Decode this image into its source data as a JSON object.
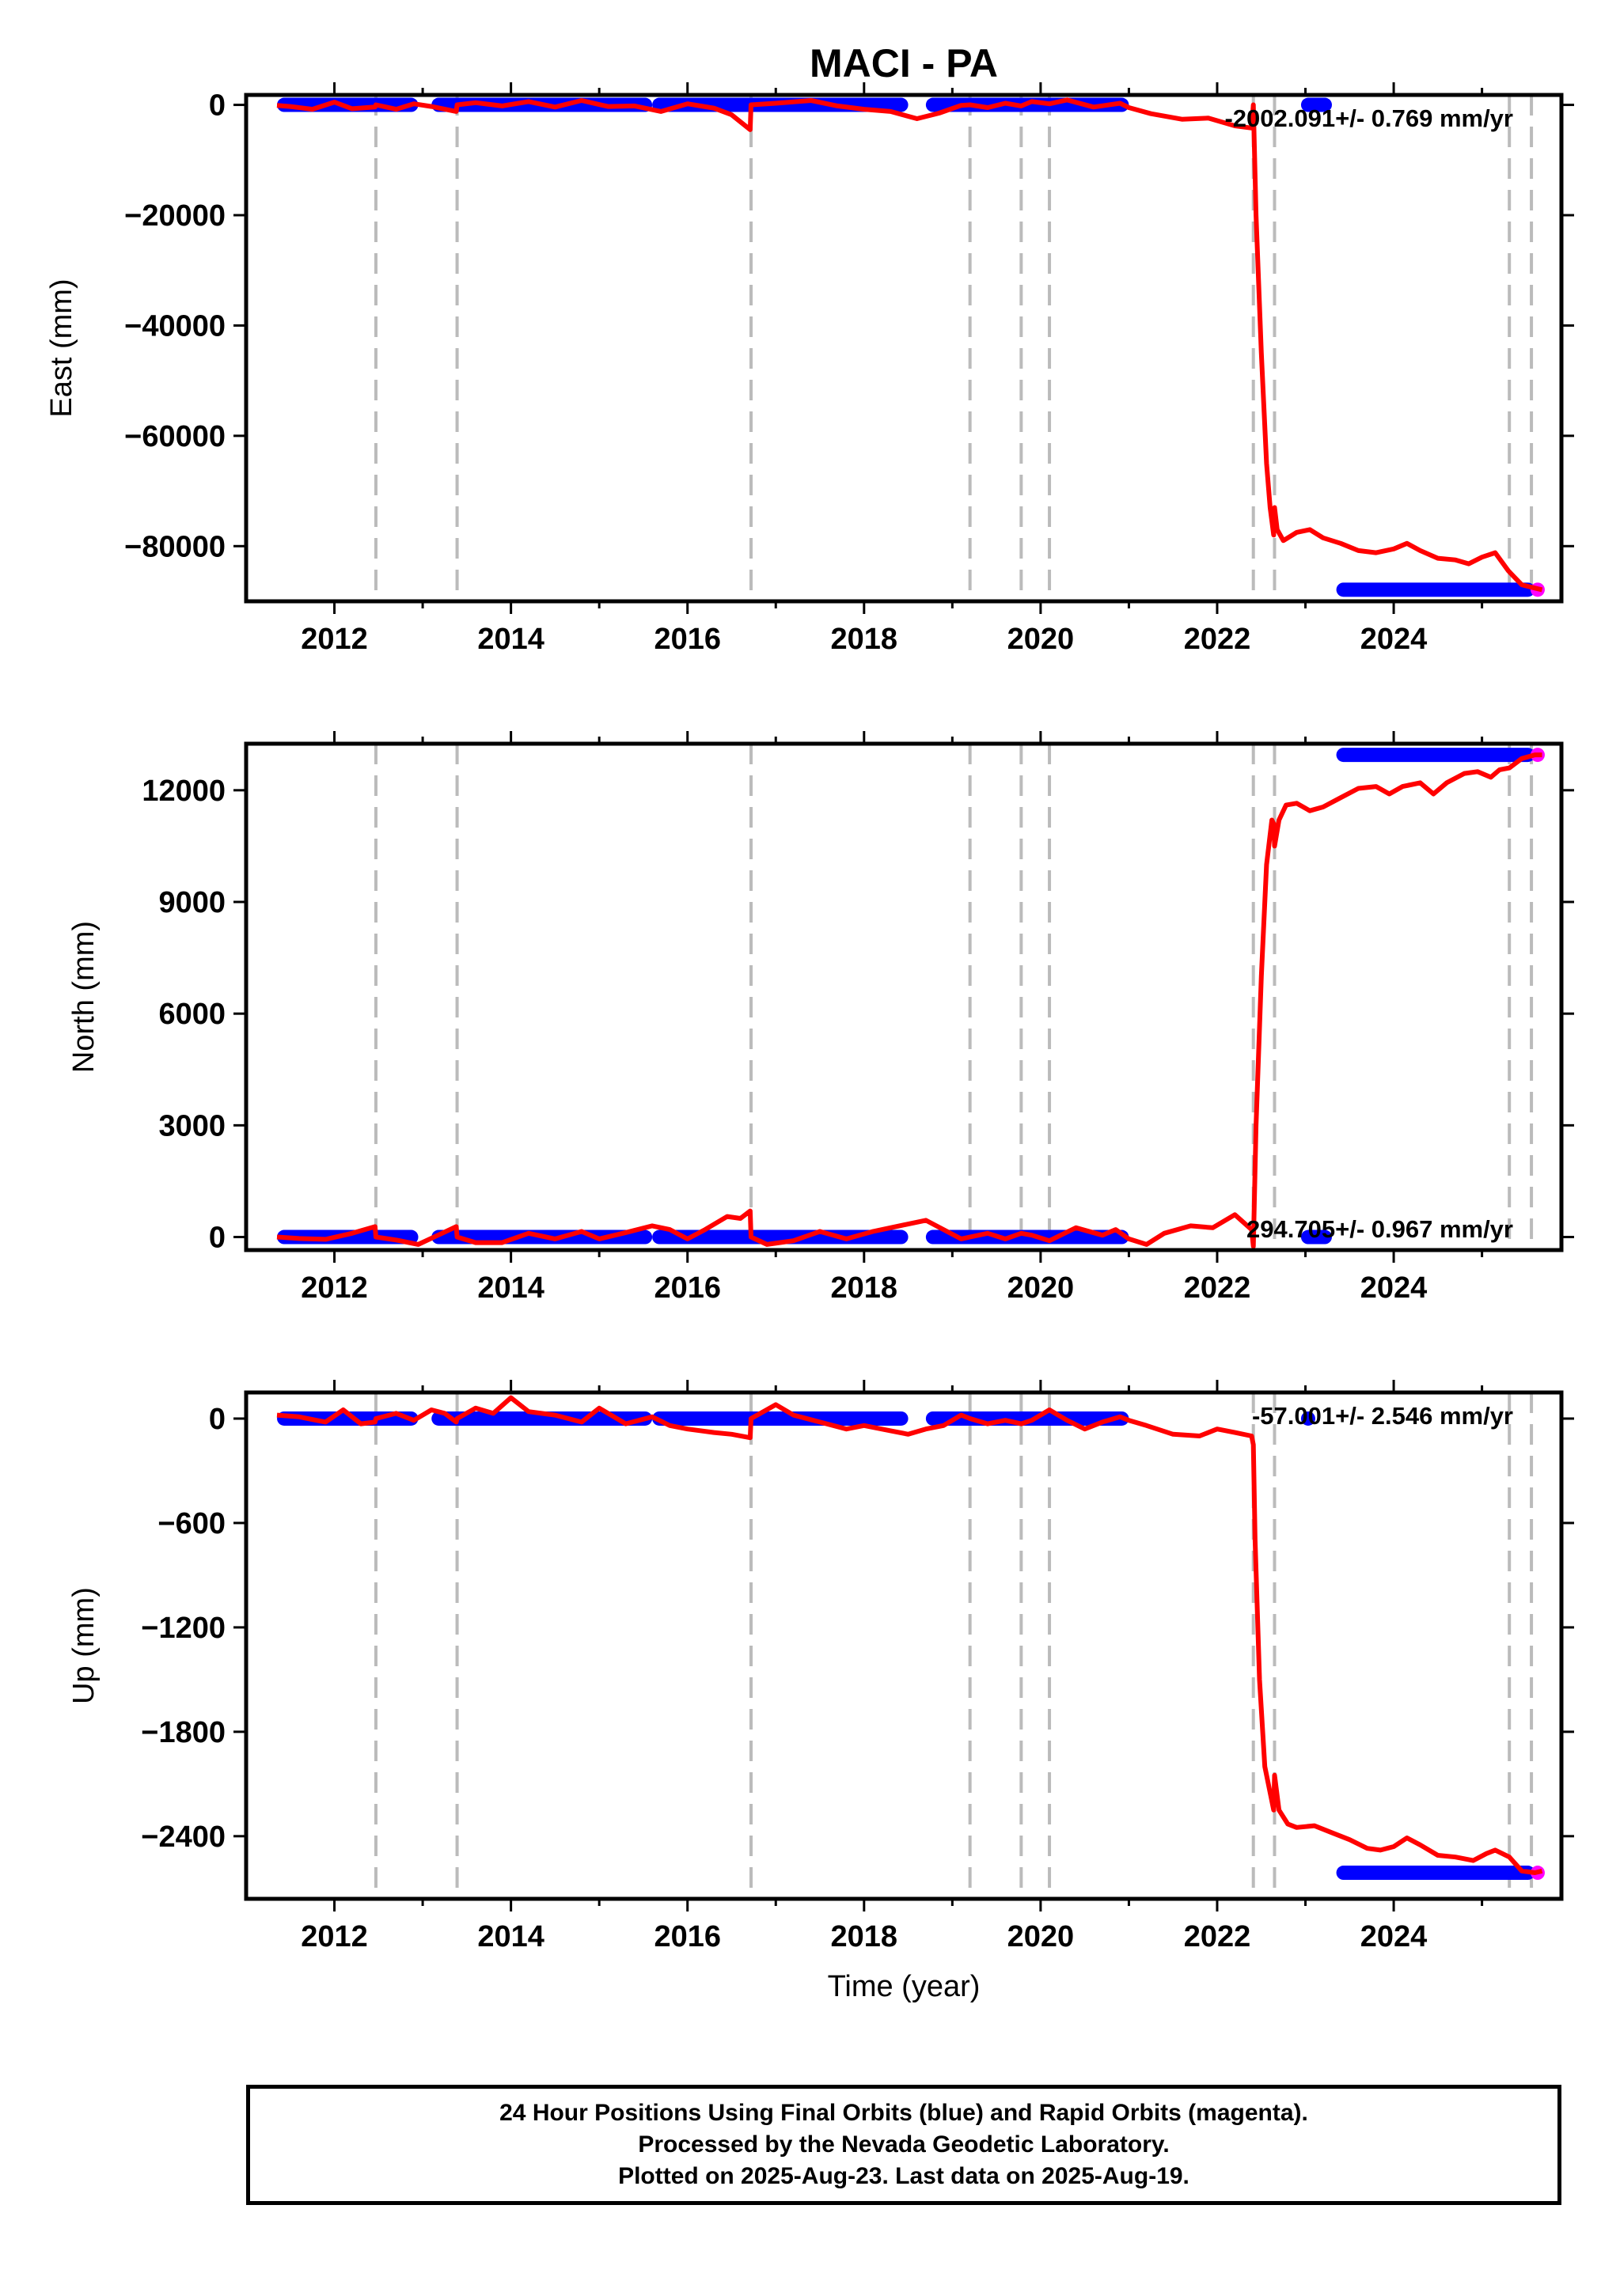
{
  "chart_data": {
    "title": "MACI - PA",
    "xlabel": "Time (year)",
    "x_ticks": [
      "2012",
      "2014",
      "2016",
      "2018",
      "2020",
      "2022",
      "2024"
    ],
    "xlim": [
      2011.0,
      2025.9
    ],
    "offset_years": [
      2012.47,
      2013.39,
      2016.72,
      2019.2,
      2019.78,
      2020.1,
      2022.41,
      2022.65,
      2025.31,
      2025.56
    ],
    "colors": {
      "final": "#0000ff",
      "rapid": "#ff00ff",
      "model": "#ff0000",
      "offset": "#bbbbbb"
    },
    "panels": [
      {
        "type": "scatter",
        "ylabel": "East (mm)",
        "ylim": [
          -90000,
          1800
        ],
        "y_ticks": [
          0,
          -20000,
          -40000,
          -60000,
          -80000
        ],
        "y_tick_labels": [
          "0",
          "−20000",
          "−40000",
          "−60000",
          "−80000"
        ],
        "rate_text": "-2002.091+/- 0.769 mm/yr",
        "final_segments": [
          {
            "x": [
              2011.35,
              2012.95
            ],
            "y": 0
          },
          {
            "x": [
              2013.1,
              2015.6
            ],
            "y": 0
          },
          {
            "x": [
              2015.6,
              2018.5
            ],
            "y": 0
          },
          {
            "x": [
              2018.7,
              2021.0
            ],
            "y": 0
          },
          {
            "x": [
              2022.95,
              2023.3
            ],
            "y": 0
          },
          {
            "x": [
              2023.35,
              2025.6
            ],
            "y": -87900
          }
        ],
        "rapid_segments": [
          {
            "x": [
              2025.55,
              2025.68
            ],
            "y": -87900
          }
        ],
        "model": [
          [
            2011.35,
            -100
          ],
          [
            2011.5,
            -300
          ],
          [
            2011.75,
            -800
          ],
          [
            2012.0,
            500
          ],
          [
            2012.2,
            -700
          ],
          [
            2012.46,
            -400
          ],
          [
            2012.47,
            0
          ],
          [
            2012.7,
            -800
          ],
          [
            2012.9,
            200
          ],
          [
            2013.1,
            -300
          ],
          [
            2013.38,
            -1200
          ],
          [
            2013.39,
            0
          ],
          [
            2013.6,
            400
          ],
          [
            2013.9,
            -200
          ],
          [
            2014.2,
            600
          ],
          [
            2014.5,
            -400
          ],
          [
            2014.8,
            800
          ],
          [
            2015.1,
            -300
          ],
          [
            2015.4,
            -200
          ],
          [
            2015.7,
            -1200
          ],
          [
            2016.0,
            200
          ],
          [
            2016.3,
            -600
          ],
          [
            2016.5,
            -1800
          ],
          [
            2016.71,
            -4500
          ],
          [
            2016.72,
            0
          ],
          [
            2017.0,
            300
          ],
          [
            2017.4,
            800
          ],
          [
            2017.7,
            -200
          ],
          [
            2018.0,
            -800
          ],
          [
            2018.3,
            -1200
          ],
          [
            2018.6,
            -2500
          ],
          [
            2018.85,
            -1500
          ],
          [
            2019.1,
            -100
          ],
          [
            2019.2,
            0
          ],
          [
            2019.4,
            -500
          ],
          [
            2019.6,
            300
          ],
          [
            2019.78,
            -200
          ],
          [
            2019.9,
            600
          ],
          [
            2020.1,
            200
          ],
          [
            2020.3,
            900
          ],
          [
            2020.6,
            -400
          ],
          [
            2020.9,
            300
          ],
          [
            2021.0,
            -500
          ],
          [
            2021.25,
            -1600
          ],
          [
            2021.6,
            -2600
          ],
          [
            2021.9,
            -2400
          ],
          [
            2022.2,
            -3800
          ],
          [
            2022.39,
            -4200
          ],
          [
            2022.41,
            0
          ],
          [
            2022.44,
            -20000
          ],
          [
            2022.5,
            -45000
          ],
          [
            2022.56,
            -65000
          ],
          [
            2022.6,
            -73000
          ],
          [
            2022.64,
            -78000
          ],
          [
            2022.65,
            -73000
          ],
          [
            2022.68,
            -77000
          ],
          [
            2022.75,
            -79000
          ],
          [
            2022.9,
            -77500
          ],
          [
            2023.05,
            -77000
          ],
          [
            2023.2,
            -78500
          ],
          [
            2023.4,
            -79500
          ],
          [
            2023.6,
            -80800
          ],
          [
            2023.8,
            -81200
          ],
          [
            2024.0,
            -80500
          ],
          [
            2024.15,
            -79500
          ],
          [
            2024.3,
            -80800
          ],
          [
            2024.5,
            -82200
          ],
          [
            2024.7,
            -82500
          ],
          [
            2024.85,
            -83200
          ],
          [
            2025.0,
            -82000
          ],
          [
            2025.15,
            -81200
          ],
          [
            2025.3,
            -84500
          ],
          [
            2025.45,
            -87000
          ],
          [
            2025.6,
            -87600
          ],
          [
            2025.68,
            -87900
          ]
        ]
      },
      {
        "type": "scatter",
        "ylabel": "North (mm)",
        "ylim": [
          -350,
          13250
        ],
        "y_ticks": [
          0,
          3000,
          6000,
          9000,
          12000
        ],
        "y_tick_labels": [
          "0",
          "3000",
          "6000",
          "9000",
          "12000"
        ],
        "rate_text": "294.705+/- 0.967 mm/yr",
        "final_segments": [
          {
            "x": [
              2011.35,
              2012.95
            ],
            "y": 0
          },
          {
            "x": [
              2013.1,
              2015.6
            ],
            "y": 0
          },
          {
            "x": [
              2015.6,
              2018.5
            ],
            "y": 0
          },
          {
            "x": [
              2018.7,
              2021.0
            ],
            "y": 0
          },
          {
            "x": [
              2022.95,
              2023.3
            ],
            "y": 0
          },
          {
            "x": [
              2023.35,
              2025.6
            ],
            "y": 12950
          }
        ],
        "rapid_segments": [
          {
            "x": [
              2025.55,
              2025.68
            ],
            "y": 12950
          }
        ],
        "model": [
          [
            2011.35,
            0
          ],
          [
            2011.6,
            -40
          ],
          [
            2011.9,
            -60
          ],
          [
            2012.2,
            100
          ],
          [
            2012.46,
            280
          ],
          [
            2012.47,
            0
          ],
          [
            2012.7,
            -80
          ],
          [
            2012.95,
            -200
          ],
          [
            2013.2,
            80
          ],
          [
            2013.38,
            280
          ],
          [
            2013.39,
            0
          ],
          [
            2013.6,
            -150
          ],
          [
            2013.9,
            -150
          ],
          [
            2014.2,
            100
          ],
          [
            2014.5,
            -50
          ],
          [
            2014.8,
            150
          ],
          [
            2015.0,
            -50
          ],
          [
            2015.3,
            120
          ],
          [
            2015.6,
            300
          ],
          [
            2015.8,
            200
          ],
          [
            2016.0,
            -50
          ],
          [
            2016.2,
            200
          ],
          [
            2016.45,
            550
          ],
          [
            2016.6,
            500
          ],
          [
            2016.71,
            700
          ],
          [
            2016.72,
            0
          ],
          [
            2016.9,
            -200
          ],
          [
            2017.2,
            -100
          ],
          [
            2017.5,
            150
          ],
          [
            2017.8,
            -50
          ],
          [
            2018.1,
            150
          ],
          [
            2018.4,
            300
          ],
          [
            2018.7,
            450
          ],
          [
            2018.9,
            200
          ],
          [
            2019.1,
            -50
          ],
          [
            2019.2,
            0
          ],
          [
            2019.4,
            100
          ],
          [
            2019.6,
            -50
          ],
          [
            2019.78,
            100
          ],
          [
            2019.9,
            50
          ],
          [
            2020.1,
            -100
          ],
          [
            2020.4,
            250
          ],
          [
            2020.7,
            50
          ],
          [
            2020.85,
            200
          ],
          [
            2021.0,
            -50
          ],
          [
            2021.2,
            -200
          ],
          [
            2021.4,
            100
          ],
          [
            2021.7,
            300
          ],
          [
            2021.95,
            250
          ],
          [
            2022.2,
            600
          ],
          [
            2022.39,
            200
          ],
          [
            2022.41,
            -250
          ],
          [
            2022.44,
            3000
          ],
          [
            2022.5,
            7000
          ],
          [
            2022.56,
            10000
          ],
          [
            2022.62,
            11200
          ],
          [
            2022.64,
            11100
          ],
          [
            2022.65,
            10500
          ],
          [
            2022.7,
            11200
          ],
          [
            2022.78,
            11600
          ],
          [
            2022.9,
            11650
          ],
          [
            2023.05,
            11450
          ],
          [
            2023.2,
            11550
          ],
          [
            2023.4,
            11800
          ],
          [
            2023.6,
            12050
          ],
          [
            2023.8,
            12100
          ],
          [
            2023.95,
            11900
          ],
          [
            2024.1,
            12100
          ],
          [
            2024.3,
            12200
          ],
          [
            2024.45,
            11900
          ],
          [
            2024.6,
            12200
          ],
          [
            2024.8,
            12450
          ],
          [
            2024.95,
            12500
          ],
          [
            2025.1,
            12350
          ],
          [
            2025.2,
            12550
          ],
          [
            2025.31,
            12600
          ],
          [
            2025.45,
            12850
          ],
          [
            2025.6,
            12950
          ],
          [
            2025.68,
            12950
          ]
        ]
      },
      {
        "type": "scatter",
        "ylabel": "Up (mm)",
        "ylim": [
          -2760,
          150
        ],
        "y_ticks": [
          0,
          -600,
          -1200,
          -1800,
          -2400
        ],
        "y_tick_labels": [
          "0",
          "−600",
          "−1200",
          "−1800",
          "−2400"
        ],
        "rate_text": "-57.001+/- 2.546 mm/yr",
        "final_segments": [
          {
            "x": [
              2011.35,
              2012.95
            ],
            "y": 0
          },
          {
            "x": [
              2013.1,
              2015.6
            ],
            "y": 0
          },
          {
            "x": [
              2015.6,
              2018.5
            ],
            "y": 0
          },
          {
            "x": [
              2018.7,
              2021.0
            ],
            "y": 0
          },
          {
            "x": [
              2022.95,
              2023.1
            ],
            "y": 0
          },
          {
            "x": [
              2023.35,
              2025.6
            ],
            "y": -2610
          }
        ],
        "rapid_segments": [
          {
            "x": [
              2025.55,
              2025.68
            ],
            "y": -2610
          }
        ],
        "model": [
          [
            2011.35,
            20
          ],
          [
            2011.6,
            10
          ],
          [
            2011.9,
            -20
          ],
          [
            2012.1,
            50
          ],
          [
            2012.3,
            -30
          ],
          [
            2012.46,
            -20
          ],
          [
            2012.47,
            0
          ],
          [
            2012.7,
            30
          ],
          [
            2012.9,
            -10
          ],
          [
            2013.1,
            50
          ],
          [
            2013.25,
            30
          ],
          [
            2013.38,
            -20
          ],
          [
            2013.39,
            0
          ],
          [
            2013.6,
            60
          ],
          [
            2013.8,
            30
          ],
          [
            2014.0,
            120
          ],
          [
            2014.2,
            40
          ],
          [
            2014.5,
            20
          ],
          [
            2014.8,
            -20
          ],
          [
            2015.0,
            60
          ],
          [
            2015.3,
            -30
          ],
          [
            2015.6,
            10
          ],
          [
            2015.8,
            -40
          ],
          [
            2016.0,
            -60
          ],
          [
            2016.3,
            -80
          ],
          [
            2016.5,
            -90
          ],
          [
            2016.71,
            -110
          ],
          [
            2016.72,
            0
          ],
          [
            2017.0,
            80
          ],
          [
            2017.2,
            20
          ],
          [
            2017.5,
            -20
          ],
          [
            2017.8,
            -60
          ],
          [
            2018.0,
            -40
          ],
          [
            2018.3,
            -70
          ],
          [
            2018.5,
            -90
          ],
          [
            2018.7,
            -60
          ],
          [
            2018.9,
            -40
          ],
          [
            2019.1,
            20
          ],
          [
            2019.2,
            0
          ],
          [
            2019.4,
            -30
          ],
          [
            2019.6,
            -10
          ],
          [
            2019.78,
            -30
          ],
          [
            2019.9,
            -10
          ],
          [
            2020.1,
            50
          ],
          [
            2020.3,
            -10
          ],
          [
            2020.5,
            -60
          ],
          [
            2020.7,
            -20
          ],
          [
            2020.9,
            10
          ],
          [
            2021.0,
            -10
          ],
          [
            2021.2,
            -40
          ],
          [
            2021.5,
            -90
          ],
          [
            2021.8,
            -100
          ],
          [
            2022.0,
            -60
          ],
          [
            2022.2,
            -80
          ],
          [
            2022.39,
            -100
          ],
          [
            2022.41,
            -150
          ],
          [
            2022.43,
            -700
          ],
          [
            2022.48,
            -1500
          ],
          [
            2022.54,
            -2000
          ],
          [
            2022.6,
            -2150
          ],
          [
            2022.64,
            -2250
          ],
          [
            2022.65,
            -2050
          ],
          [
            2022.7,
            -2250
          ],
          [
            2022.8,
            -2330
          ],
          [
            2022.9,
            -2350
          ],
          [
            2023.1,
            -2340
          ],
          [
            2023.3,
            -2380
          ],
          [
            2023.5,
            -2420
          ],
          [
            2023.7,
            -2470
          ],
          [
            2023.85,
            -2480
          ],
          [
            2024.0,
            -2460
          ],
          [
            2024.15,
            -2410
          ],
          [
            2024.3,
            -2450
          ],
          [
            2024.5,
            -2510
          ],
          [
            2024.7,
            -2520
          ],
          [
            2024.9,
            -2540
          ],
          [
            2025.05,
            -2500
          ],
          [
            2025.15,
            -2480
          ],
          [
            2025.31,
            -2520
          ],
          [
            2025.45,
            -2600
          ],
          [
            2025.6,
            -2610
          ],
          [
            2025.68,
            -2600
          ]
        ]
      }
    ]
  },
  "footer": {
    "line1": "24 Hour Positions Using Final Orbits (blue) and Rapid Orbits (magenta).",
    "line2": "Processed by the Nevada Geodetic Laboratory.",
    "line3": "Plotted on 2025-Aug-23. Last data on 2025-Aug-19."
  }
}
